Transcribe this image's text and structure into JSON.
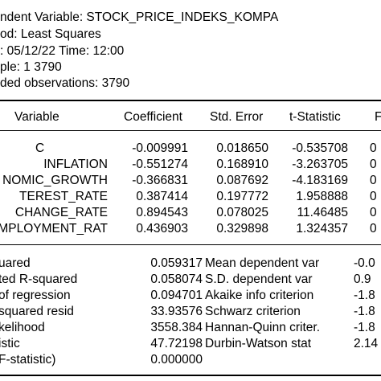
{
  "header": {
    "line1": "ndent Variable: STOCK_PRICE_INDEKS_KOMPA",
    "line2": "od: Least Squares",
    "line3": ": 05/12/22   Time: 12:00",
    "line4": "ple: 1 3790",
    "line5": "ded observations: 3790"
  },
  "table": {
    "columns": [
      "Variable",
      "Coefficient",
      "Std. Error",
      "t-Statistic",
      "F"
    ],
    "rows": [
      {
        "var": "C",
        "coef": "-0.009991",
        "se": "0.018650",
        "t": "-0.535708",
        "p": "0"
      },
      {
        "var": "INFLATION",
        "coef": "-0.551274",
        "se": "0.168910",
        "t": "-3.263705",
        "p": "0"
      },
      {
        "var": "NOMIC_GROWTH",
        "coef": "-0.366831",
        "se": "0.087692",
        "t": "-4.183169",
        "p": "0"
      },
      {
        "var": "TEREST_RATE",
        "coef": "0.387414",
        "se": "0.197772",
        "t": "1.958888",
        "p": "0"
      },
      {
        "var": "CHANGE_RATE",
        "coef": "0.894543",
        "se": "0.078025",
        "t": "11.46485",
        "p": "0"
      },
      {
        "var": "MPLOYMENT_RAT",
        "coef": "0.436903",
        "se": "0.329898",
        "t": "1.324357",
        "p": "0"
      }
    ]
  },
  "stats": [
    {
      "label1": "uared",
      "val1": "0.059317",
      "label2": "Mean dependent var",
      "val2": "-0.0"
    },
    {
      "label1": "ted R-squared",
      "val1": "0.058074",
      "label2": "S.D. dependent var",
      "val2": "0.9"
    },
    {
      "label1": "of regression",
      "val1": "0.094701",
      "label2": "Akaike info criterion",
      "val2": "-1.8"
    },
    {
      "label1": "squared resid",
      "val1": "33.93576",
      "label2": "Schwarz criterion",
      "val2": "-1.8"
    },
    {
      "label1": "kelihood",
      "val1": "3558.384",
      "label2": "Hannan-Quinn criter.",
      "val2": "-1.8"
    },
    {
      "label1": "istic",
      "val1": "47.72198",
      "label2": "Durbin-Watson stat",
      "val2": "2.14"
    },
    {
      "label1": "F-statistic)",
      "val1": "0.000000",
      "label2": "",
      "val2": ""
    }
  ]
}
